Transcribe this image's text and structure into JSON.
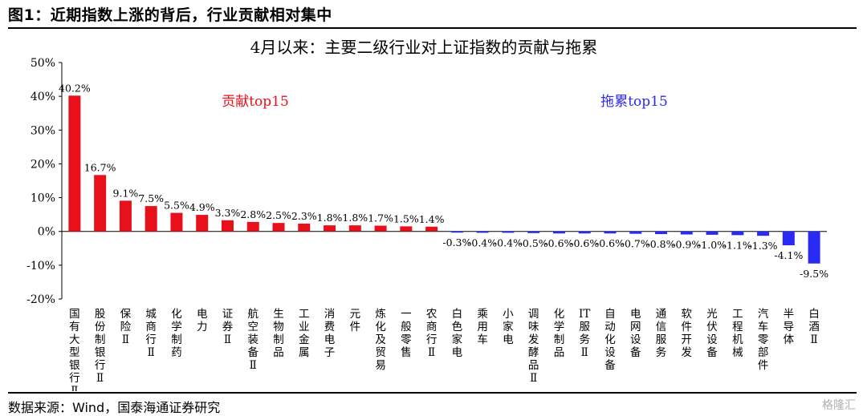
{
  "figure": {
    "title": "图1：近期指数上涨的背后，行业贡献相对集中",
    "source": "数据来源：Wind，国泰海通证券研究",
    "watermark": "格隆汇"
  },
  "colors": {
    "positive": "#e8101b",
    "negative": "#2a2af5",
    "contrib_label": "#e8101b",
    "drag_label": "#2a2af5"
  },
  "chart_data": {
    "type": "bar",
    "title": "4月以来：主要二级行业对上证指数的贡献与拖累",
    "annotations": [
      "贡献top15",
      "拖累top15"
    ],
    "ylim": [
      -20,
      50
    ],
    "yticks": [
      -20,
      -10,
      0,
      10,
      20,
      30,
      40,
      50
    ],
    "ytick_labels": [
      "-20%",
      "-10%",
      "0%",
      "10%",
      "20%",
      "30%",
      "40%",
      "50%"
    ],
    "categories": [
      "国有大型银行Ⅱ",
      "股份制银行Ⅱ",
      "保险Ⅱ",
      "城商行Ⅱ",
      "化学制药",
      "电力",
      "证券Ⅱ",
      "航空装备Ⅱ",
      "生物制品",
      "工业金属",
      "消费电子",
      "元件",
      "炼化及贸易",
      "一般零售",
      "农商行Ⅱ",
      "白色家电",
      "乘用车",
      "小家电",
      "调味发酵品Ⅱ",
      "化学制品",
      "IT服务Ⅱ",
      "自动化设备",
      "电网设备",
      "通信服务",
      "软件开发",
      "光伏设备",
      "工程机械",
      "汽车零部件",
      "半导体",
      "白酒Ⅱ"
    ],
    "values": [
      40.2,
      16.7,
      9.1,
      7.5,
      5.5,
      4.9,
      3.3,
      2.8,
      2.5,
      2.3,
      1.8,
      1.8,
      1.7,
      1.5,
      1.4,
      -0.3,
      -0.4,
      -0.4,
      -0.5,
      -0.6,
      -0.6,
      -0.6,
      -0.7,
      -0.8,
      -0.9,
      -1.0,
      -1.1,
      -1.3,
      -4.1,
      -9.5
    ],
    "data_labels": [
      "40.2%",
      "16.7%",
      "9.1%",
      "7.5%",
      "5.5%",
      "4.9%",
      "3.3%",
      "2.8%",
      "2.5%",
      "2.3%",
      "1.8%",
      "1.8%",
      "1.7%",
      "1.5%",
      "1.4%",
      "-0.3%",
      "-0.4%",
      "-0.4%",
      "-0.5%",
      "-0.6%",
      "-0.6%",
      "-0.6%",
      "-0.7%",
      "-0.8%",
      "-0.9%",
      "-1.0%",
      "-1.1%",
      "-1.3%",
      "-4.1%",
      "-9.5%"
    ],
    "category_label_glyphs": [
      [
        "国",
        "有",
        "大",
        "型",
        "银",
        "行",
        "Ⅱ"
      ],
      [
        "股",
        "份",
        "制",
        "银",
        "行",
        "Ⅱ"
      ],
      [
        "保",
        "险",
        "Ⅱ"
      ],
      [
        "城",
        "商",
        "行",
        "Ⅱ"
      ],
      [
        "化",
        "学",
        "制",
        "药"
      ],
      [
        "电",
        "力"
      ],
      [
        "证",
        "券",
        "Ⅱ"
      ],
      [
        "航",
        "空",
        "装",
        "备",
        "Ⅱ"
      ],
      [
        "生",
        "物",
        "制",
        "品"
      ],
      [
        "工",
        "业",
        "金",
        "属"
      ],
      [
        "消",
        "费",
        "电",
        "子"
      ],
      [
        "元",
        "件"
      ],
      [
        "炼",
        "化",
        "及",
        "贸",
        "易"
      ],
      [
        "一",
        "般",
        "零",
        "售"
      ],
      [
        "农",
        "商",
        "行",
        "Ⅱ"
      ],
      [
        "白",
        "色",
        "家",
        "电"
      ],
      [
        "乘",
        "用",
        "车"
      ],
      [
        "小",
        "家",
        "电"
      ],
      [
        "调",
        "味",
        "发",
        "酵",
        "品",
        "Ⅱ"
      ],
      [
        "化",
        "学",
        "制",
        "品"
      ],
      [
        "IT",
        "服",
        "务",
        "Ⅱ"
      ],
      [
        "自",
        "动",
        "化",
        "设",
        "备"
      ],
      [
        "电",
        "网",
        "设",
        "备"
      ],
      [
        "通",
        "信",
        "服",
        "务"
      ],
      [
        "软",
        "件",
        "开",
        "发"
      ],
      [
        "光",
        "伏",
        "设",
        "备"
      ],
      [
        "工",
        "程",
        "机",
        "械"
      ],
      [
        "汽",
        "车",
        "零",
        "部",
        "件"
      ],
      [
        "半",
        "导",
        "体"
      ],
      [
        "白",
        "酒",
        "Ⅱ"
      ]
    ],
    "grid": false,
    "legend": "none"
  }
}
